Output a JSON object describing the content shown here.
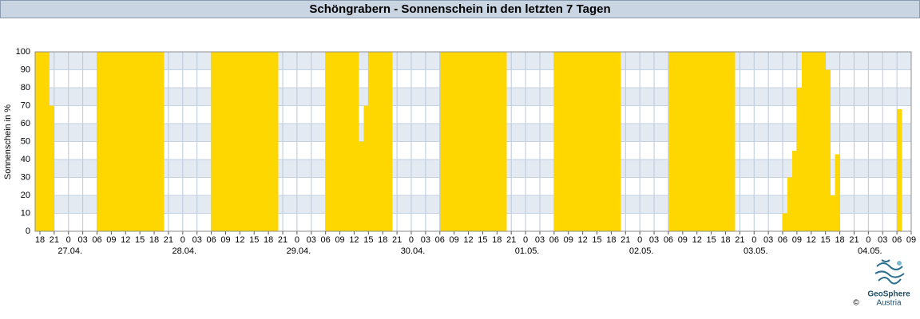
{
  "chart_data": {
    "type": "bar",
    "title": "Schöngrabern - Sonnenschein in den letzten 7 Tagen",
    "ylabel": "Sonnenschein in %",
    "color": "#ffd700",
    "grid": true,
    "xlim": [
      -7,
      177
    ],
    "ylim": [
      0,
      100
    ],
    "yticks": [
      0,
      10,
      20,
      30,
      40,
      50,
      60,
      70,
      80,
      90,
      100
    ],
    "xticks": [
      {
        "value": -6,
        "label": "18"
      },
      {
        "value": -3,
        "label": "21"
      },
      0,
      {
        "value": 3,
        "label": "03"
      },
      {
        "value": 6,
        "label": "06"
      },
      {
        "value": 9,
        "label": "09"
      },
      12,
      15,
      18,
      21,
      {
        "value": 24,
        "label": "0"
      },
      {
        "value": 27,
        "label": "03"
      },
      {
        "value": 30,
        "label": "06"
      },
      {
        "value": 33,
        "label": "09"
      },
      {
        "value": 36,
        "label": "12"
      },
      {
        "value": 39,
        "label": "15"
      },
      {
        "value": 42,
        "label": "18"
      },
      {
        "value": 45,
        "label": "21"
      },
      {
        "value": 48,
        "label": "0"
      },
      {
        "value": 51,
        "label": "03"
      },
      {
        "value": 54,
        "label": "06"
      },
      {
        "value": 57,
        "label": "09"
      },
      {
        "value": 60,
        "label": "12"
      },
      {
        "value": 63,
        "label": "15"
      },
      {
        "value": 66,
        "label": "18"
      },
      {
        "value": 69,
        "label": "21"
      },
      {
        "value": 72,
        "label": "0"
      },
      {
        "value": 75,
        "label": "03"
      },
      {
        "value": 78,
        "label": "06"
      },
      {
        "value": 81,
        "label": "09"
      },
      {
        "value": 84,
        "label": "12"
      },
      {
        "value": 87,
        "label": "15"
      },
      {
        "value": 90,
        "label": "18"
      },
      {
        "value": 93,
        "label": "21"
      },
      {
        "value": 96,
        "label": "0"
      },
      {
        "value": 99,
        "label": "03"
      },
      {
        "value": 102,
        "label": "06"
      },
      {
        "value": 105,
        "label": "09"
      },
      {
        "value": 108,
        "label": "12"
      },
      {
        "value": 111,
        "label": "15"
      },
      {
        "value": 114,
        "label": "18"
      },
      {
        "value": 117,
        "label": "21"
      },
      {
        "value": 120,
        "label": "0"
      },
      {
        "value": 123,
        "label": "03"
      },
      {
        "value": 126,
        "label": "06"
      },
      {
        "value": 129,
        "label": "09"
      },
      {
        "value": 132,
        "label": "12"
      },
      {
        "value": 135,
        "label": "15"
      },
      {
        "value": 138,
        "label": "18"
      },
      {
        "value": 141,
        "label": "21"
      },
      {
        "value": 144,
        "label": "0"
      },
      {
        "value": 147,
        "label": "03"
      },
      {
        "value": 150,
        "label": "06"
      },
      {
        "value": 153,
        "label": "09"
      },
      {
        "value": 156,
        "label": "12"
      },
      {
        "value": 159,
        "label": "15"
      },
      {
        "value": 162,
        "label": "18"
      },
      {
        "value": 165,
        "label": "21"
      },
      {
        "value": 168,
        "label": "0"
      },
      {
        "value": 171,
        "label": "03"
      },
      {
        "value": 174,
        "label": "06"
      },
      {
        "value": 177,
        "label": "09"
      }
    ],
    "date_labels": [
      {
        "value": 0,
        "label": "27.04."
      },
      {
        "value": 24,
        "label": "28.04."
      },
      {
        "value": 48,
        "label": "29.04."
      },
      {
        "value": 72,
        "label": "30.04."
      },
      {
        "value": 96,
        "label": "01.05."
      },
      {
        "value": 120,
        "label": "02.05."
      },
      {
        "value": 144,
        "label": "03.05."
      },
      {
        "value": 168,
        "label": "04.05."
      }
    ],
    "x": [
      -7,
      -6,
      -5,
      -4,
      -3,
      -2,
      -1,
      0,
      1,
      2,
      3,
      4,
      5,
      6,
      7,
      8,
      9,
      10,
      11,
      12,
      13,
      14,
      15,
      16,
      17,
      18,
      19,
      20,
      21,
      22,
      23,
      24,
      25,
      26,
      27,
      28,
      29,
      30,
      31,
      32,
      33,
      34,
      35,
      36,
      37,
      38,
      39,
      40,
      41,
      42,
      43,
      44,
      45,
      46,
      47,
      48,
      49,
      50,
      51,
      52,
      53,
      54,
      55,
      56,
      57,
      58,
      59,
      60,
      61,
      62,
      63,
      64,
      65,
      66,
      67,
      68,
      69,
      70,
      71,
      72,
      73,
      74,
      75,
      76,
      77,
      78,
      79,
      80,
      81,
      82,
      83,
      84,
      85,
      86,
      87,
      88,
      89,
      90,
      91,
      92,
      93,
      94,
      95,
      96,
      97,
      98,
      99,
      100,
      101,
      102,
      103,
      104,
      105,
      106,
      107,
      108,
      109,
      110,
      111,
      112,
      113,
      114,
      115,
      116,
      117,
      118,
      119,
      120,
      121,
      122,
      123,
      124,
      125,
      126,
      127,
      128,
      129,
      130,
      131,
      132,
      133,
      134,
      135,
      136,
      137,
      138,
      139,
      140,
      141,
      142,
      143,
      144,
      145,
      146,
      147,
      148,
      149,
      150,
      151,
      152,
      153,
      154,
      155,
      156,
      157,
      158,
      159,
      160,
      161,
      162,
      163,
      164,
      165,
      166,
      167,
      168,
      169,
      170,
      171,
      172,
      173,
      174,
      175,
      176
    ],
    "values": [
      100,
      100,
      100,
      70,
      0,
      0,
      0,
      0,
      0,
      0,
      0,
      0,
      0,
      100,
      100,
      100,
      100,
      100,
      100,
      100,
      100,
      100,
      100,
      100,
      100,
      100,
      100,
      0,
      0,
      0,
      0,
      0,
      0,
      0,
      0,
      0,
      0,
      100,
      100,
      100,
      100,
      100,
      100,
      100,
      100,
      100,
      100,
      100,
      100,
      100,
      100,
      0,
      0,
      0,
      0,
      0,
      0,
      0,
      0,
      0,
      0,
      100,
      100,
      100,
      100,
      100,
      100,
      100,
      50,
      70,
      100,
      100,
      100,
      100,
      100,
      0,
      0,
      0,
      0,
      0,
      0,
      0,
      0,
      0,
      0,
      100,
      100,
      100,
      100,
      100,
      100,
      100,
      100,
      100,
      100,
      100,
      100,
      100,
      100,
      0,
      0,
      0,
      0,
      0,
      0,
      0,
      0,
      0,
      0,
      100,
      100,
      100,
      100,
      100,
      100,
      100,
      100,
      100,
      100,
      100,
      100,
      100,
      100,
      0,
      0,
      0,
      0,
      0,
      0,
      0,
      0,
      0,
      0,
      100,
      100,
      100,
      100,
      100,
      100,
      100,
      100,
      100,
      100,
      100,
      100,
      100,
      100,
      0,
      0,
      0,
      0,
      0,
      0,
      0,
      0,
      0,
      0,
      10,
      30,
      45,
      80,
      100,
      100,
      100,
      100,
      100,
      90,
      20,
      43,
      0,
      0,
      0,
      0,
      0,
      0,
      0,
      0,
      0,
      0,
      0,
      0,
      68,
      0,
      0
    ]
  },
  "footer": {
    "brand": "GeoSphere",
    "copyright": "©",
    "country": "Austria"
  }
}
